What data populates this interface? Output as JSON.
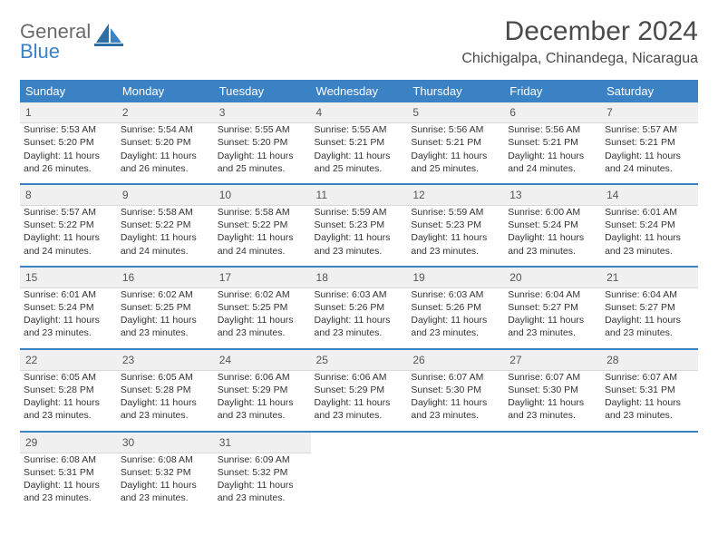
{
  "brand": {
    "name_a": "General",
    "name_b": "Blue"
  },
  "title": "December 2024",
  "location": "Chichigalpa, Chinandega, Nicaragua",
  "colors": {
    "header_bg": "#3b82c4",
    "header_text": "#ffffff",
    "daynum_bg": "#f0f0f0",
    "text": "#333333",
    "logo_gray": "#6b6b6b",
    "logo_blue": "#3b82c4",
    "separator": "#3b82c4"
  },
  "typography": {
    "title_fontsize": 30,
    "location_fontsize": 16,
    "dayheader_fontsize": 13,
    "daynum_fontsize": 12,
    "cell_fontsize": 10.5
  },
  "day_headers": [
    "Sunday",
    "Monday",
    "Tuesday",
    "Wednesday",
    "Thursday",
    "Friday",
    "Saturday"
  ],
  "weeks": [
    [
      {
        "n": "1",
        "sunrise": "5:53 AM",
        "sunset": "5:20 PM",
        "day_h": "11",
        "day_m": "26"
      },
      {
        "n": "2",
        "sunrise": "5:54 AM",
        "sunset": "5:20 PM",
        "day_h": "11",
        "day_m": "26"
      },
      {
        "n": "3",
        "sunrise": "5:55 AM",
        "sunset": "5:20 PM",
        "day_h": "11",
        "day_m": "25"
      },
      {
        "n": "4",
        "sunrise": "5:55 AM",
        "sunset": "5:21 PM",
        "day_h": "11",
        "day_m": "25"
      },
      {
        "n": "5",
        "sunrise": "5:56 AM",
        "sunset": "5:21 PM",
        "day_h": "11",
        "day_m": "25"
      },
      {
        "n": "6",
        "sunrise": "5:56 AM",
        "sunset": "5:21 PM",
        "day_h": "11",
        "day_m": "24"
      },
      {
        "n": "7",
        "sunrise": "5:57 AM",
        "sunset": "5:21 PM",
        "day_h": "11",
        "day_m": "24"
      }
    ],
    [
      {
        "n": "8",
        "sunrise": "5:57 AM",
        "sunset": "5:22 PM",
        "day_h": "11",
        "day_m": "24"
      },
      {
        "n": "9",
        "sunrise": "5:58 AM",
        "sunset": "5:22 PM",
        "day_h": "11",
        "day_m": "24"
      },
      {
        "n": "10",
        "sunrise": "5:58 AM",
        "sunset": "5:22 PM",
        "day_h": "11",
        "day_m": "24"
      },
      {
        "n": "11",
        "sunrise": "5:59 AM",
        "sunset": "5:23 PM",
        "day_h": "11",
        "day_m": "23"
      },
      {
        "n": "12",
        "sunrise": "5:59 AM",
        "sunset": "5:23 PM",
        "day_h": "11",
        "day_m": "23"
      },
      {
        "n": "13",
        "sunrise": "6:00 AM",
        "sunset": "5:24 PM",
        "day_h": "11",
        "day_m": "23"
      },
      {
        "n": "14",
        "sunrise": "6:01 AM",
        "sunset": "5:24 PM",
        "day_h": "11",
        "day_m": "23"
      }
    ],
    [
      {
        "n": "15",
        "sunrise": "6:01 AM",
        "sunset": "5:24 PM",
        "day_h": "11",
        "day_m": "23"
      },
      {
        "n": "16",
        "sunrise": "6:02 AM",
        "sunset": "5:25 PM",
        "day_h": "11",
        "day_m": "23"
      },
      {
        "n": "17",
        "sunrise": "6:02 AM",
        "sunset": "5:25 PM",
        "day_h": "11",
        "day_m": "23"
      },
      {
        "n": "18",
        "sunrise": "6:03 AM",
        "sunset": "5:26 PM",
        "day_h": "11",
        "day_m": "23"
      },
      {
        "n": "19",
        "sunrise": "6:03 AM",
        "sunset": "5:26 PM",
        "day_h": "11",
        "day_m": "23"
      },
      {
        "n": "20",
        "sunrise": "6:04 AM",
        "sunset": "5:27 PM",
        "day_h": "11",
        "day_m": "23"
      },
      {
        "n": "21",
        "sunrise": "6:04 AM",
        "sunset": "5:27 PM",
        "day_h": "11",
        "day_m": "23"
      }
    ],
    [
      {
        "n": "22",
        "sunrise": "6:05 AM",
        "sunset": "5:28 PM",
        "day_h": "11",
        "day_m": "23"
      },
      {
        "n": "23",
        "sunrise": "6:05 AM",
        "sunset": "5:28 PM",
        "day_h": "11",
        "day_m": "23"
      },
      {
        "n": "24",
        "sunrise": "6:06 AM",
        "sunset": "5:29 PM",
        "day_h": "11",
        "day_m": "23"
      },
      {
        "n": "25",
        "sunrise": "6:06 AM",
        "sunset": "5:29 PM",
        "day_h": "11",
        "day_m": "23"
      },
      {
        "n": "26",
        "sunrise": "6:07 AM",
        "sunset": "5:30 PM",
        "day_h": "11",
        "day_m": "23"
      },
      {
        "n": "27",
        "sunrise": "6:07 AM",
        "sunset": "5:30 PM",
        "day_h": "11",
        "day_m": "23"
      },
      {
        "n": "28",
        "sunrise": "6:07 AM",
        "sunset": "5:31 PM",
        "day_h": "11",
        "day_m": "23"
      }
    ],
    [
      {
        "n": "29",
        "sunrise": "6:08 AM",
        "sunset": "5:31 PM",
        "day_h": "11",
        "day_m": "23"
      },
      {
        "n": "30",
        "sunrise": "6:08 AM",
        "sunset": "5:32 PM",
        "day_h": "11",
        "day_m": "23"
      },
      {
        "n": "31",
        "sunrise": "6:09 AM",
        "sunset": "5:32 PM",
        "day_h": "11",
        "day_m": "23"
      },
      null,
      null,
      null,
      null
    ]
  ],
  "labels": {
    "sunrise": "Sunrise:",
    "sunset": "Sunset:",
    "daylight_a": "Daylight:",
    "daylight_hours": "hours",
    "daylight_and": "and",
    "daylight_minutes": "minutes."
  }
}
